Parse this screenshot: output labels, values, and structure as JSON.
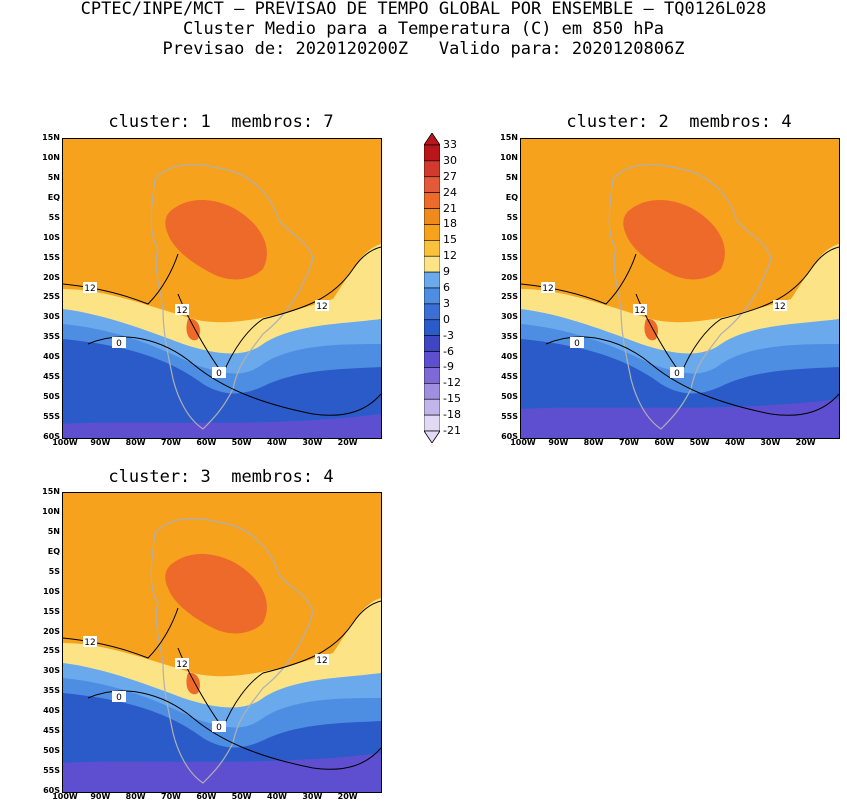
{
  "header": {
    "line1": "CPTEC/INPE/MCT — PREVISAO DE TEMPO GLOBAL POR ENSEMBLE — TQ0126L028",
    "line2": "Cluster Medio para a Temperatura (C) em 850 hPa",
    "line3": "Previsao de: 2020120200Z   Valido para: 2020120806Z"
  },
  "panels": [
    {
      "title": "cluster: 1  membros: 7"
    },
    {
      "title": "cluster: 2  membros: 4"
    },
    {
      "title": "cluster: 3  membros: 4"
    }
  ],
  "lat_ticks": [
    "15N",
    "10N",
    "5N",
    "EQ",
    "5S",
    "10S",
    "15S",
    "20S",
    "25S",
    "30S",
    "35S",
    "40S",
    "45S",
    "50S",
    "55S",
    "60S"
  ],
  "lon_ticks": [
    "100W",
    "90W",
    "80W",
    "70W",
    "60W",
    "50W",
    "40W",
    "30W",
    "20W"
  ],
  "contour_labels": [
    "12",
    "12",
    "0",
    "12",
    "0"
  ],
  "colorbar": {
    "levels": [
      "33",
      "30",
      "27",
      "24",
      "21",
      "18",
      "15",
      "12",
      "9",
      "6",
      "3",
      "0",
      "-3",
      "-6",
      "-9",
      "-12",
      "-15",
      "-18",
      "-21"
    ],
    "colors": [
      "#b8161b",
      "#d23a2d",
      "#e35a3a",
      "#ee6a2a",
      "#f08a1c",
      "#f6a21c",
      "#f9c13c",
      "#fbe386",
      "#6aa9ec",
      "#4e8ee2",
      "#3b6fd6",
      "#2b5bc8",
      "#3e46c4",
      "#5d4fd0",
      "#7e6ad6",
      "#a08fe0",
      "#c1b5ea",
      "#e2daf4"
    ],
    "unit": "C"
  },
  "palette": {
    "ocean_warm": "#f6a21c",
    "land_hot": "#ee6a2a",
    "yellow": "#fbe386",
    "light_blue": "#6aa9ec",
    "mid_blue": "#4e8ee2",
    "deep_blue": "#2b5bc8",
    "purple": "#5d4fd0"
  }
}
